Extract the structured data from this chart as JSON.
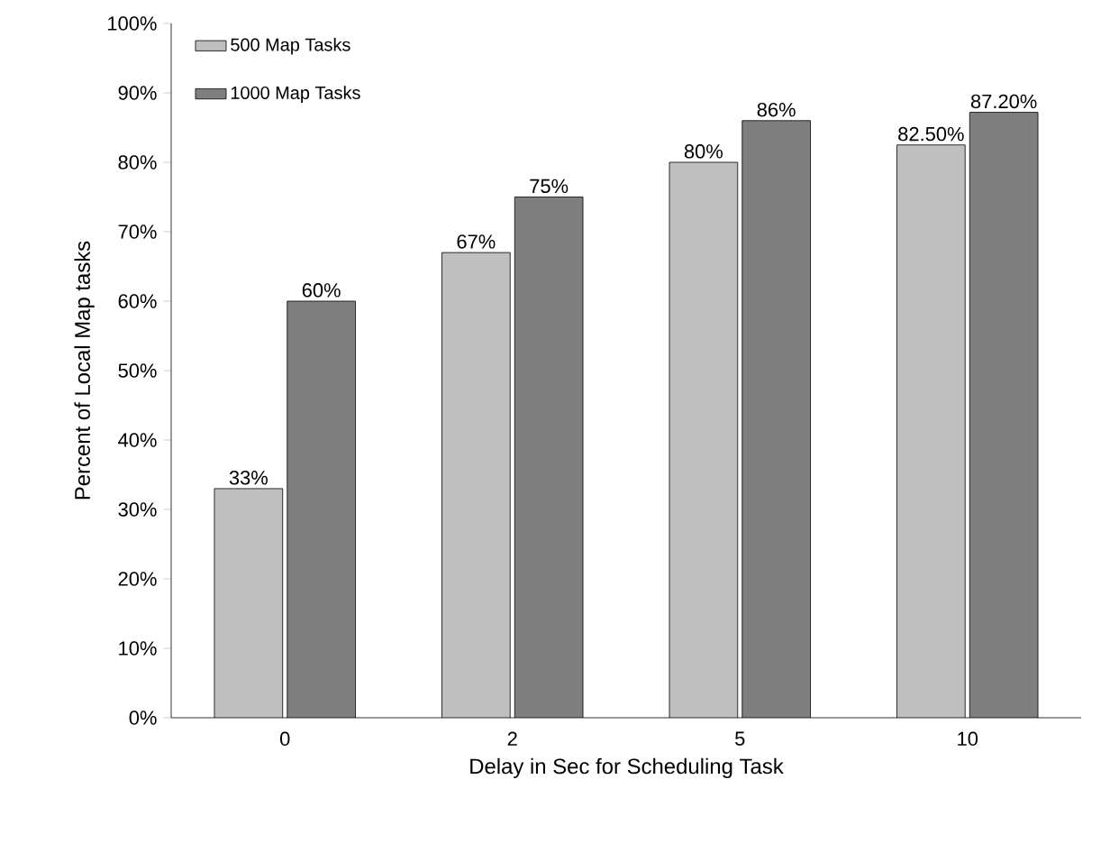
{
  "chart_data": {
    "type": "bar",
    "xlabel": "Delay  in Sec for Scheduling Task",
    "ylabel": "Percent of Local Map tasks",
    "categories": [
      "0",
      "2",
      "5",
      "10"
    ],
    "series": [
      {
        "name": "500 Map Tasks",
        "color": "#bfbfbf",
        "values": [
          33,
          67,
          80,
          82.5
        ],
        "value_labels": [
          "33%",
          "67%",
          "80%",
          "82.50%"
        ]
      },
      {
        "name": "1000 Map Tasks",
        "color": "#7f7f7f",
        "values": [
          60,
          75,
          86,
          87.2
        ],
        "value_labels": [
          "60%",
          "75%",
          "86%",
          "87.20%"
        ]
      }
    ],
    "ylim": [
      0,
      100
    ],
    "yticks": [
      {
        "value": 0,
        "label": "0%"
      },
      {
        "value": 10,
        "label": "10%"
      },
      {
        "value": 20,
        "label": "20%"
      },
      {
        "value": 30,
        "label": "30%"
      },
      {
        "value": 40,
        "label": "40%"
      },
      {
        "value": 50,
        "label": "50%"
      },
      {
        "value": 60,
        "label": "60%"
      },
      {
        "value": 70,
        "label": "70%"
      },
      {
        "value": 80,
        "label": "80%"
      },
      {
        "value": 90,
        "label": "90%"
      },
      {
        "value": 100,
        "label": "100%"
      }
    ],
    "grid": false,
    "legend": "top left"
  }
}
